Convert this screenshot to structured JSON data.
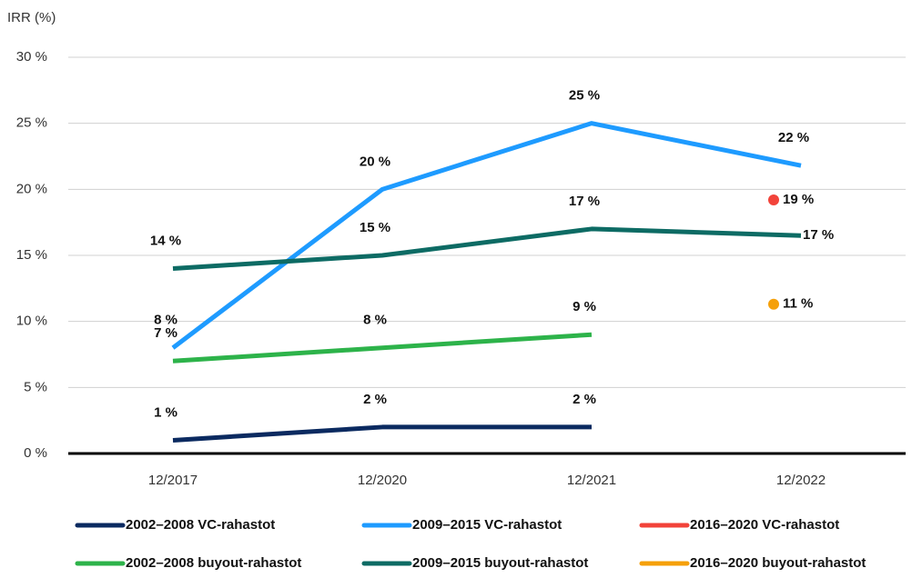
{
  "chart_data": {
    "type": "line",
    "y_axis_label": "IRR (%)",
    "categories": [
      "12/2017",
      "12/2020",
      "12/2021",
      "12/2022"
    ],
    "ylim": [
      0,
      30
    ],
    "yticks": [
      {
        "value": 0,
        "label": "0 %"
      },
      {
        "value": 5,
        "label": "5 %"
      },
      {
        "value": 10,
        "label": "10 %"
      },
      {
        "value": 15,
        "label": "15 %"
      },
      {
        "value": 20,
        "label": "20 %"
      },
      {
        "value": 25,
        "label": "25 %"
      },
      {
        "value": 30,
        "label": "30 %"
      }
    ],
    "grid": true,
    "legend": "bottom",
    "series": [
      {
        "name": "2002–2008 VC-rahastot",
        "color": "#0b2a60",
        "values": [
          1,
          2,
          2,
          null
        ],
        "value_labels": [
          "1 %",
          "2 %",
          "2 %",
          null
        ]
      },
      {
        "name": "2009–2015 VC-rahastot",
        "color": "#1e9bff",
        "values": [
          8,
          20,
          25,
          21.8
        ],
        "value_labels": [
          "8 %",
          "20 %",
          "25 %",
          "22 %"
        ]
      },
      {
        "name": "2016–2020 VC-rahastot",
        "color": "#f2433a",
        "values": [
          null,
          null,
          null,
          19.2
        ],
        "value_labels": [
          null,
          null,
          null,
          "19 %"
        ]
      },
      {
        "name": "2002–2008 buyout-rahastot",
        "color": "#2db34a",
        "values": [
          7,
          8,
          9,
          null
        ],
        "value_labels": [
          "7 %",
          "8 %",
          "9 %",
          null
        ]
      },
      {
        "name": "2009–2015 buyout-rahastot",
        "color": "#0d6b64",
        "values": [
          14,
          15,
          17,
          16.5
        ],
        "value_labels": [
          "14 %",
          "15 %",
          "17 %",
          "17 %"
        ]
      },
      {
        "name": "2016–2020 buyout-rahastot",
        "color": "#f5a00a",
        "values": [
          null,
          null,
          null,
          11.3
        ],
        "value_labels": [
          null,
          null,
          null,
          "11 %"
        ]
      }
    ]
  }
}
